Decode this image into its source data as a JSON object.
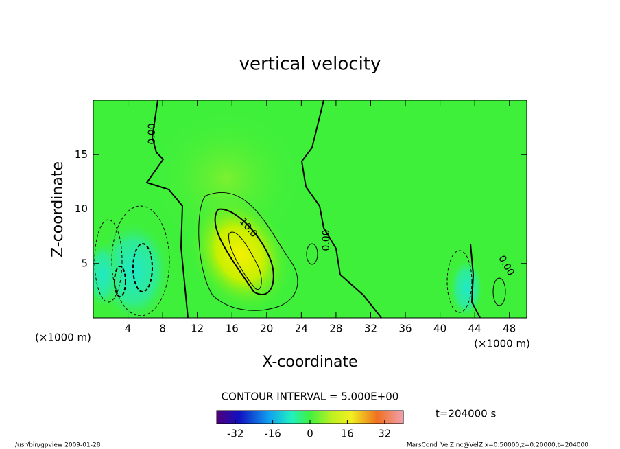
{
  "chart_data": {
    "type": "contour",
    "title": "vertical velocity",
    "xlabel": "X-coordinate",
    "ylabel": "Z-coordinate",
    "x_unit": "(×1000 m)",
    "y_unit": "(×1000 m)",
    "xlim": [
      0,
      50
    ],
    "xticks": [
      4,
      8,
      12,
      16,
      20,
      24,
      28,
      32,
      36,
      40,
      44,
      48
    ],
    "ylim": [
      0,
      20
    ],
    "yticks": [
      5,
      10,
      15
    ],
    "contour_labels": [
      {
        "value": 0,
        "label": "0.00"
      },
      {
        "value": 10,
        "label": "10.0"
      },
      {
        "value": 0,
        "label": "0.00"
      },
      {
        "value": 0,
        "label": "0.00"
      }
    ],
    "contour_interval": "CONTOUR INTERVAL = 5.000E+00",
    "time": "t=204000 s",
    "colorbar": {
      "lim": [
        -40,
        40
      ],
      "ticks": [
        -32,
        -16,
        0,
        16,
        32
      ]
    },
    "footer_left": "/usr/bin/gpview  2009-01-28",
    "footer_right": "MarsCond_VelZ.nc@VelZ,x=0:50000,z=0:20000,t=204000"
  }
}
